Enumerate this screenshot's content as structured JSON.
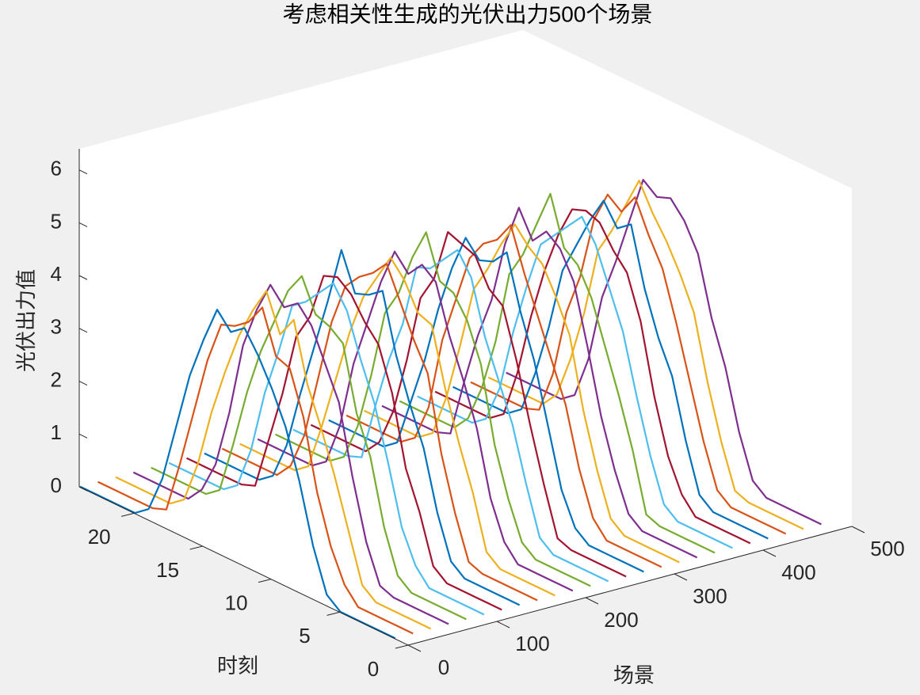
{
  "chart_data": {
    "type": "line3d",
    "title": "考虑相关性生成的光伏出力500个场景",
    "xlabel": "场景",
    "ylabel": "时刻",
    "zlabel": "光伏出力值",
    "xlim": [
      0,
      500
    ],
    "xticks": [
      0,
      100,
      200,
      300,
      400,
      500
    ],
    "ylim": [
      0,
      24
    ],
    "yticks": [
      0,
      5,
      10,
      15,
      20
    ],
    "zlim": [
      0,
      6.4
    ],
    "zticks": [
      0,
      1,
      2,
      3,
      4,
      5,
      6
    ],
    "hours": [
      1,
      2,
      3,
      4,
      5,
      6,
      7,
      8,
      9,
      10,
      11,
      12,
      13,
      14,
      15,
      16,
      17,
      18,
      19,
      20,
      21,
      22,
      23,
      24
    ],
    "series": [
      {
        "x": 1,
        "color": "#0072BD",
        "values": [
          0,
          0,
          0,
          0,
          0,
          0.2,
          1.0,
          2.1,
          3.0,
          3.6,
          4.1,
          4.5,
          4.3,
          4.6,
          3.9,
          3.1,
          2.0,
          0.9,
          0.2,
          0,
          0,
          0,
          0,
          0
        ]
      },
      {
        "x": 21,
        "color": "#D95319",
        "values": [
          0,
          0,
          0,
          0,
          0,
          0.3,
          0.9,
          1.8,
          3.1,
          3.9,
          4.0,
          4.8,
          4.4,
          4.2,
          4.1,
          3.3,
          2.2,
          1.1,
          0.1,
          0,
          0,
          0,
          0,
          0
        ]
      },
      {
        "x": 41,
        "color": "#EDB120",
        "values": [
          0,
          0,
          0,
          0,
          0,
          0.2,
          1.1,
          2.0,
          2.8,
          3.5,
          4.6,
          4.2,
          4.9,
          4.4,
          3.8,
          3.0,
          2.1,
          1.0,
          0.2,
          0,
          0,
          0,
          0,
          0
        ]
      },
      {
        "x": 61,
        "color": "#7E2F8E",
        "values": [
          0,
          0,
          0,
          0,
          0,
          0.1,
          0.8,
          1.9,
          3.2,
          3.8,
          4.4,
          4.7,
          4.5,
          4.8,
          4.2,
          3.4,
          2.0,
          0.9,
          0.3,
          0,
          0,
          0,
          0,
          0
        ]
      },
      {
        "x": 81,
        "color": "#77AC30",
        "values": [
          0,
          0,
          0,
          0,
          0,
          0.2,
          1.0,
          2.2,
          2.9,
          4.1,
          4.3,
          4.4,
          5.0,
          4.6,
          3.9,
          3.2,
          2.3,
          1.2,
          0.2,
          0,
          0,
          0,
          0,
          0
        ]
      },
      {
        "x": 101,
        "color": "#4DBEEE",
        "values": [
          0,
          0,
          0,
          0,
          0,
          0.3,
          0.9,
          2.0,
          3.0,
          3.7,
          4.5,
          4.9,
          4.6,
          4.3,
          4.1,
          3.1,
          2.2,
          1.0,
          0.2,
          0,
          0,
          0,
          0,
          0
        ]
      },
      {
        "x": 121,
        "color": "#A2142F",
        "values": [
          0,
          0,
          0,
          0,
          0,
          0.2,
          1.1,
          1.8,
          3.1,
          3.9,
          4.2,
          4.6,
          4.8,
          4.7,
          3.8,
          3.3,
          2.1,
          1.1,
          0.1,
          0,
          0,
          0,
          0,
          0
        ]
      },
      {
        "x": 141,
        "color": "#0072BD",
        "values": [
          0,
          0,
          0,
          0,
          0,
          0.2,
          1.0,
          2.1,
          2.8,
          3.6,
          4.7,
          4.5,
          4.4,
          5.1,
          4.0,
          3.0,
          2.0,
          0.9,
          0.2,
          0,
          0,
          0,
          0,
          0
        ]
      },
      {
        "x": 161,
        "color": "#D95319",
        "values": [
          0,
          0,
          0,
          0,
          0,
          0.1,
          0.9,
          1.9,
          3.3,
          3.8,
          4.4,
          5.0,
          4.7,
          4.5,
          4.2,
          3.4,
          2.2,
          1.0,
          0.3,
          0,
          0,
          0,
          0,
          0
        ]
      },
      {
        "x": 181,
        "color": "#EDB120",
        "values": [
          0,
          0,
          0,
          0,
          0,
          0.2,
          1.2,
          2.0,
          2.9,
          4.0,
          4.1,
          4.6,
          4.9,
          4.4,
          3.9,
          3.1,
          2.1,
          1.1,
          0.2,
          0,
          0,
          0,
          0,
          0
        ]
      },
      {
        "x": 201,
        "color": "#7E2F8E",
        "values": [
          0,
          0,
          0,
          0,
          0,
          0.3,
          1.0,
          2.2,
          3.0,
          3.7,
          4.6,
          4.8,
          4.5,
          4.8,
          4.1,
          3.2,
          2.3,
          1.0,
          0.2,
          0,
          0,
          0,
          0,
          0
        ]
      },
      {
        "x": 221,
        "color": "#77AC30",
        "values": [
          0,
          0,
          0,
          0,
          0,
          0.2,
          0.9,
          1.8,
          3.2,
          3.9,
          4.3,
          4.4,
          5.2,
          4.6,
          3.8,
          3.3,
          2.0,
          0.9,
          0.2,
          0,
          0,
          0,
          0,
          0
        ]
      },
      {
        "x": 241,
        "color": "#4DBEEE",
        "values": [
          0,
          0,
          0,
          0,
          0,
          0.2,
          1.1,
          2.1,
          2.8,
          3.5,
          4.5,
          4.9,
          4.6,
          4.3,
          4.2,
          3.0,
          2.2,
          1.2,
          0.1,
          0,
          0,
          0,
          0,
          0
        ]
      },
      {
        "x": 261,
        "color": "#A2142F",
        "values": [
          0,
          0,
          0,
          0,
          0,
          0.1,
          1.0,
          2.0,
          3.1,
          4.0,
          4.2,
          4.7,
          4.8,
          4.9,
          3.9,
          3.4,
          2.1,
          1.0,
          0.3,
          0,
          0,
          0,
          0,
          0
        ]
      },
      {
        "x": 281,
        "color": "#0072BD",
        "values": [
          0,
          0,
          0,
          0,
          0,
          0.2,
          0.8,
          1.9,
          3.0,
          3.8,
          4.8,
          4.5,
          4.4,
          4.7,
          4.0,
          3.1,
          2.0,
          1.1,
          0.2,
          0,
          0,
          0,
          0,
          0
        ]
      },
      {
        "x": 301,
        "color": "#D95319",
        "values": [
          0,
          0,
          0,
          0,
          0,
          0.3,
          1.1,
          2.2,
          2.9,
          3.6,
          4.3,
          5.1,
          4.7,
          4.5,
          4.1,
          3.2,
          2.3,
          0.9,
          0.2,
          0,
          0,
          0,
          0,
          0
        ]
      },
      {
        "x": 321,
        "color": "#EDB120",
        "values": [
          0,
          0,
          0,
          0,
          0,
          0.2,
          1.0,
          2.0,
          3.3,
          3.9,
          4.4,
          4.6,
          4.9,
          4.4,
          3.8,
          3.3,
          2.1,
          1.0,
          0.2,
          0,
          0,
          0,
          0,
          0
        ]
      },
      {
        "x": 341,
        "color": "#7E2F8E",
        "values": [
          0,
          0,
          0,
          0,
          0,
          0.2,
          0.9,
          1.8,
          3.0,
          4.1,
          4.6,
          4.8,
          4.5,
          5.0,
          4.2,
          3.0,
          2.2,
          1.2,
          0.1,
          0,
          0,
          0,
          0,
          0
        ]
      },
      {
        "x": 361,
        "color": "#77AC30",
        "values": [
          0,
          0,
          0,
          0,
          0,
          0.1,
          1.2,
          2.1,
          2.9,
          3.7,
          4.2,
          4.4,
          5.3,
          4.6,
          3.9,
          3.4,
          2.0,
          1.0,
          0.3,
          0,
          0,
          0,
          0,
          0
        ]
      },
      {
        "x": 381,
        "color": "#4DBEEE",
        "values": [
          0,
          0,
          0,
          0,
          0,
          0.2,
          1.0,
          2.0,
          3.1,
          3.8,
          4.5,
          4.9,
          4.6,
          4.3,
          4.0,
          3.1,
          2.1,
          0.9,
          0.2,
          0,
          0,
          0,
          0,
          0
        ]
      },
      {
        "x": 401,
        "color": "#A2142F",
        "values": [
          0,
          0,
          0,
          0,
          0,
          0.3,
          0.9,
          1.9,
          3.2,
          4.0,
          4.3,
          4.7,
          4.8,
          4.7,
          4.1,
          3.3,
          2.3,
          1.1,
          0.2,
          0,
          0,
          0,
          0,
          0
        ]
      },
      {
        "x": 421,
        "color": "#0072BD",
        "values": [
          0,
          0,
          0,
          0,
          0,
          0.2,
          1.1,
          2.2,
          2.8,
          3.6,
          4.7,
          4.5,
          4.9,
          4.4,
          3.8,
          3.2,
          2.0,
          1.0,
          0.2,
          0,
          0,
          0,
          0,
          0
        ]
      },
      {
        "x": 441,
        "color": "#D95319",
        "values": [
          0,
          0,
          0,
          0,
          0,
          0.2,
          1.0,
          2.0,
          3.0,
          3.9,
          4.4,
          5.0,
          4.6,
          4.8,
          4.2,
          3.0,
          2.2,
          0.9,
          0.1,
          0,
          0,
          0,
          0,
          0
        ]
      },
      {
        "x": 461,
        "color": "#EDB120",
        "values": [
          0,
          0,
          0,
          0,
          0,
          0.1,
          0.9,
          1.9,
          3.1,
          3.7,
          4.2,
          4.6,
          5.1,
          4.5,
          3.9,
          3.4,
          2.1,
          1.1,
          0.3,
          0,
          0,
          0,
          0,
          0
        ]
      },
      {
        "x": 481,
        "color": "#7E2F8E",
        "values": [
          0,
          0,
          0,
          0,
          0,
          0.2,
          1.0,
          2.1,
          2.9,
          4.0,
          4.5,
          4.8,
          4.7,
          4.9,
          4.0,
          3.1,
          2.3,
          1.0,
          0.2,
          0,
          0,
          0,
          0,
          0
        ]
      }
    ]
  }
}
